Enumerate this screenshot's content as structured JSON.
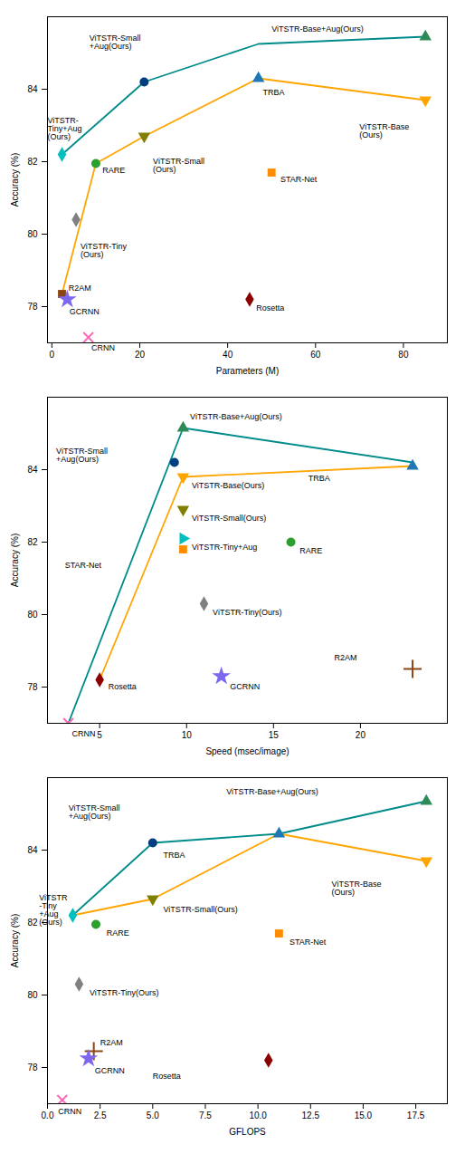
{
  "chart_data": [
    {
      "type": "line",
      "xlabel": "Parameters (M)",
      "ylabel": "Accuracy (%)",
      "xlim": [
        -1,
        90
      ],
      "ylim": [
        77.0,
        86.0
      ],
      "xticks": [
        0,
        20,
        40,
        60,
        80
      ],
      "yticks": [
        78,
        80,
        82,
        84
      ],
      "series": [
        {
          "type": "line",
          "color": "#008B8B",
          "x": [
            2.3,
            21,
            47,
            85
          ],
          "values": [
            82.2,
            84.2,
            85.25,
            85.45
          ]
        },
        {
          "type": "line",
          "color": "#FFA500",
          "x": [
            2.3,
            10,
            21,
            47,
            85
          ],
          "values": [
            78.35,
            81.95,
            82.7,
            84.3,
            83.7
          ]
        },
        {
          "type": "scatter",
          "marker": "circle",
          "color": "#003f7f",
          "x": [
            21
          ],
          "values": [
            84.2
          ]
        },
        {
          "type": "scatter",
          "marker": "triangle-up",
          "color": "#2e8b57",
          "x": [
            85
          ],
          "values": [
            85.45
          ]
        },
        {
          "type": "scatter",
          "marker": "diamond",
          "color": "#00BFBF",
          "x": [
            2.3
          ],
          "values": [
            82.2
          ]
        },
        {
          "type": "scatter",
          "marker": "triangle-up",
          "color": "#1f77b4",
          "x": [
            47
          ],
          "values": [
            84.3
          ]
        },
        {
          "type": "scatter",
          "marker": "triangle-down",
          "color": "#FFA500",
          "x": [
            85
          ],
          "values": [
            83.7
          ]
        },
        {
          "type": "scatter",
          "marker": "triangle-down",
          "color": "#808000",
          "x": [
            21
          ],
          "values": [
            82.7
          ]
        },
        {
          "type": "scatter",
          "marker": "circle",
          "color": "#2ca02c",
          "x": [
            10
          ],
          "values": [
            81.95
          ]
        },
        {
          "type": "scatter",
          "marker": "square",
          "color": "#FF8C00",
          "x": [
            50
          ],
          "values": [
            81.7
          ]
        },
        {
          "type": "scatter",
          "marker": "diamond",
          "color": "#808080",
          "x": [
            5.5
          ],
          "values": [
            80.4
          ]
        },
        {
          "type": "scatter",
          "marker": "square",
          "color": "#8B4513",
          "x": [
            2.3
          ],
          "values": [
            78.35
          ]
        },
        {
          "type": "scatter",
          "marker": "star",
          "color": "#7B68EE",
          "x": [
            3.5
          ],
          "values": [
            78.2
          ]
        },
        {
          "type": "scatter",
          "marker": "diamond",
          "color": "#8B0000",
          "x": [
            45
          ],
          "values": [
            78.2
          ]
        },
        {
          "type": "scatter",
          "marker": "x",
          "color": "#FF69B4",
          "x": [
            8.3
          ],
          "values": [
            77.15
          ]
        }
      ],
      "annotations": [
        {
          "text": "ViTSTR-Small\n+Aug(Ours)",
          "x": 8.5,
          "y": 85.3
        },
        {
          "text": "ViTSTR-Base+Aug(Ours)",
          "x": 50,
          "y": 85.65
        },
        {
          "text": "ViTSTR-\nTiny+Aug\n(Ours)",
          "x": -1.0,
          "y": 82.9
        },
        {
          "text": "TRBA",
          "x": 48,
          "y": 83.9
        },
        {
          "text": "ViTSTR-Base\n(Ours)",
          "x": 70,
          "y": 82.85
        },
        {
          "text": "ViTSTR-Small\n(Ours)",
          "x": 23,
          "y": 81.9
        },
        {
          "text": "RARE",
          "x": 11.5,
          "y": 81.75
        },
        {
          "text": "STAR-Net",
          "x": 52,
          "y": 81.5
        },
        {
          "text": "ViTSTR-Tiny\n(Ours)",
          "x": 6.5,
          "y": 79.55
        },
        {
          "text": "R2AM",
          "x": 3.8,
          "y": 78.5
        },
        {
          "text": "GCRNN",
          "x": 4.0,
          "y": 77.85
        },
        {
          "text": "Rosetta",
          "x": 46.5,
          "y": 77.95
        },
        {
          "text": "CRNN",
          "x": 9.0,
          "y": 76.85
        }
      ]
    },
    {
      "type": "line",
      "xlabel": "Speed (msec/image)",
      "ylabel": "Accuracy (%)",
      "xlim": [
        2,
        25
      ],
      "ylim": [
        77.0,
        86.0
      ],
      "xticks": [
        5,
        10,
        15,
        20
      ],
      "yticks": [
        78,
        80,
        82,
        84
      ],
      "series": [
        {
          "type": "line",
          "color": "#008B8B",
          "x": [
            3.2,
            9.8,
            23
          ],
          "values": [
            77.0,
            85.15,
            84.2
          ]
        },
        {
          "type": "line",
          "color": "#FFA500",
          "x": [
            5.0,
            9.8,
            23
          ],
          "values": [
            78.2,
            83.8,
            84.1
          ]
        },
        {
          "type": "scatter",
          "marker": "circle",
          "color": "#003f7f",
          "x": [
            9.3
          ],
          "values": [
            84.2
          ]
        },
        {
          "type": "scatter",
          "marker": "triangle-up",
          "color": "#2e8b57",
          "x": [
            9.8
          ],
          "values": [
            85.15
          ]
        },
        {
          "type": "scatter",
          "marker": "triangle-up",
          "color": "#1f77b4",
          "x": [
            23
          ],
          "values": [
            84.1
          ]
        },
        {
          "type": "scatter",
          "marker": "triangle-down",
          "color": "#FFA500",
          "x": [
            9.8
          ],
          "values": [
            83.8
          ]
        },
        {
          "type": "scatter",
          "marker": "triangle-down",
          "color": "#808000",
          "x": [
            9.8
          ],
          "values": [
            82.9
          ]
        },
        {
          "type": "scatter",
          "marker": "triangle-right",
          "color": "#00BFBF",
          "x": [
            9.8
          ],
          "values": [
            82.1
          ]
        },
        {
          "type": "scatter",
          "marker": "square",
          "color": "#FF8C00",
          "x": [
            9.8
          ],
          "values": [
            81.8
          ]
        },
        {
          "type": "scatter",
          "marker": "diamond",
          "color": "#808080",
          "x": [
            11.0
          ],
          "values": [
            80.3
          ]
        },
        {
          "type": "scatter",
          "marker": "circle",
          "color": "#2ca02c",
          "x": [
            16
          ],
          "values": [
            82.0
          ]
        },
        {
          "type": "scatter",
          "marker": "diamond",
          "color": "#8B0000",
          "x": [
            5.0
          ],
          "values": [
            78.2
          ]
        },
        {
          "type": "scatter",
          "marker": "star",
          "color": "#7B68EE",
          "x": [
            12
          ],
          "values": [
            78.3
          ]
        },
        {
          "type": "scatter",
          "marker": "plus",
          "color": "#8B4513",
          "x": [
            23
          ],
          "values": [
            78.5
          ]
        },
        {
          "type": "scatter",
          "marker": "x",
          "color": "#FF69B4",
          "x": [
            3.2
          ],
          "values": [
            77.0
          ]
        }
      ],
      "annotations": [
        {
          "text": "ViTSTR-Small\n+Aug(Ours)",
          "x": 2.5,
          "y": 84.4
        },
        {
          "text": "ViTSTR-Base+Aug(Ours)",
          "x": 10.2,
          "y": 85.45
        },
        {
          "text": "TRBA",
          "x": 17.0,
          "y": 83.75
        },
        {
          "text": "ViTSTR-Base(Ours)",
          "x": 10.3,
          "y": 83.55
        },
        {
          "text": "ViTSTR-Small(Ours)",
          "x": 10.3,
          "y": 82.65
        },
        {
          "text": "ViTSTR-Tiny+Aug",
          "x": 10.3,
          "y": 81.85
        },
        {
          "text": "STAR-Net",
          "x": 3.0,
          "y": 81.35
        },
        {
          "text": "ViTSTR-Tiny(Ours)",
          "x": 11.5,
          "y": 80.05
        },
        {
          "text": "RARE",
          "x": 16.5,
          "y": 81.75
        },
        {
          "text": "Rosetta",
          "x": 5.5,
          "y": 78.0
        },
        {
          "text": "GCRNN",
          "x": 12.5,
          "y": 78.0
        },
        {
          "text": "R2AM",
          "x": 18.5,
          "y": 78.8
        },
        {
          "text": "CRNN",
          "x": 3.4,
          "y": 76.72
        }
      ]
    },
    {
      "type": "line",
      "xlabel": "GFLOPS",
      "ylabel": "Accuracy (%)",
      "xlim": [
        0,
        19
      ],
      "ylim": [
        77.0,
        86.0
      ],
      "xticks": [
        {
          "value": 0,
          "label": "0.0"
        },
        2.5,
        {
          "value": 5,
          "label": "5.0"
        },
        7.5,
        {
          "value": 10,
          "label": "10.0"
        },
        12.5,
        {
          "value": 15,
          "label": "15.0"
        },
        17.5
      ],
      "yticks": [
        78,
        80,
        82,
        84
      ],
      "series": [
        {
          "type": "line",
          "color": "#008B8B",
          "x": [
            1.2,
            5,
            11,
            18
          ],
          "values": [
            82.2,
            84.2,
            84.45,
            85.35
          ]
        },
        {
          "type": "line",
          "color": "#FFA500",
          "x": [
            1.2,
            5,
            11,
            18
          ],
          "values": [
            82.2,
            82.65,
            84.45,
            83.7
          ]
        },
        {
          "type": "scatter",
          "marker": "circle",
          "color": "#003f7f",
          "x": [
            5
          ],
          "values": [
            84.2
          ]
        },
        {
          "type": "scatter",
          "marker": "triangle-up",
          "color": "#2e8b57",
          "x": [
            18
          ],
          "values": [
            85.35
          ]
        },
        {
          "type": "scatter",
          "marker": "diamond",
          "color": "#00BFBF",
          "x": [
            1.2
          ],
          "values": [
            82.2
          ]
        },
        {
          "type": "scatter",
          "marker": "triangle-up",
          "color": "#1f77b4",
          "x": [
            11
          ],
          "values": [
            84.45
          ]
        },
        {
          "type": "scatter",
          "marker": "triangle-down",
          "color": "#FFA500",
          "x": [
            18
          ],
          "values": [
            83.7
          ]
        },
        {
          "type": "scatter",
          "marker": "triangle-down",
          "color": "#808000",
          "x": [
            5
          ],
          "values": [
            82.65
          ]
        },
        {
          "type": "scatter",
          "marker": "circle",
          "color": "#2ca02c",
          "x": [
            2.3
          ],
          "values": [
            81.95
          ]
        },
        {
          "type": "scatter",
          "marker": "square",
          "color": "#FF8C00",
          "x": [
            11
          ],
          "values": [
            81.7
          ]
        },
        {
          "type": "scatter",
          "marker": "diamond",
          "color": "#808080",
          "x": [
            1.5
          ],
          "values": [
            80.3
          ]
        },
        {
          "type": "scatter",
          "marker": "plus",
          "color": "#8B4513",
          "x": [
            2.2
          ],
          "values": [
            78.45
          ]
        },
        {
          "type": "scatter",
          "marker": "star",
          "color": "#7B68EE",
          "x": [
            1.95
          ],
          "values": [
            78.25
          ]
        },
        {
          "type": "scatter",
          "marker": "diamond",
          "color": "#8B0000",
          "x": [
            10.5
          ],
          "values": [
            78.2
          ]
        },
        {
          "type": "scatter",
          "marker": "x",
          "color": "#FF69B4",
          "x": [
            0.7
          ],
          "values": [
            77.1
          ]
        }
      ],
      "annotations": [
        {
          "text": "ViTSTR-Small\n+Aug(Ours)",
          "x": 1.0,
          "y": 85.05
        },
        {
          "text": "ViTSTR-Base+Aug(Ours)",
          "x": 8.5,
          "y": 85.6
        },
        {
          "text": "ViTSTR\n-Tiny\n+Aug\n(Ours)",
          "x": -0.4,
          "y": 82.35
        },
        {
          "text": "TRBA",
          "x": 5.5,
          "y": 83.85
        },
        {
          "text": "ViTSTR-Base\n(Ours)",
          "x": 13.5,
          "y": 82.95
        },
        {
          "text": "ViTSTR-Small(Ours)",
          "x": 5.5,
          "y": 82.35
        },
        {
          "text": "RARE",
          "x": 2.8,
          "y": 81.7
        },
        {
          "text": "STAR-Net",
          "x": 11.5,
          "y": 81.45
        },
        {
          "text": "ViTSTR-Tiny(Ours)",
          "x": 2.0,
          "y": 80.05
        },
        {
          "text": "R2AM",
          "x": 2.5,
          "y": 78.68
        },
        {
          "text": "GCRNN",
          "x": 2.25,
          "y": 77.9
        },
        {
          "text": "Rosetta",
          "x": 5.0,
          "y": 77.75
        },
        {
          "text": "CRNN",
          "x": 0.5,
          "y": 76.78
        }
      ]
    }
  ]
}
